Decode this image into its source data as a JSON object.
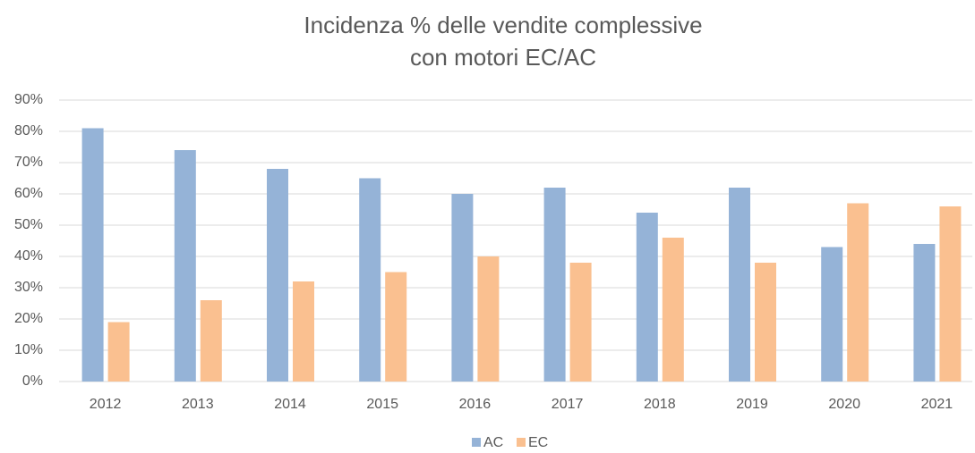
{
  "chart_data": {
    "type": "bar",
    "title": [
      "Incidenza % delle vendite complessive",
      "con motori EC/AC"
    ],
    "categories": [
      "2012",
      "2013",
      "2014",
      "2015",
      "2016",
      "2017",
      "2018",
      "2019",
      "2020",
      "2021"
    ],
    "series": [
      {
        "name": "AC",
        "color": "#95b3d7",
        "values": [
          81,
          74,
          68,
          65,
          60,
          62,
          54,
          62,
          43,
          44
        ]
      },
      {
        "name": "EC",
        "color": "#fac090",
        "values": [
          19,
          26,
          32,
          35,
          40,
          38,
          46,
          38,
          57,
          56
        ]
      }
    ],
    "ylim": [
      0,
      90
    ],
    "yticks": [
      {
        "value": 0,
        "label": "0%"
      },
      {
        "value": 10,
        "label": "10%"
      },
      {
        "value": 20,
        "label": "20%"
      },
      {
        "value": 30,
        "label": "30%"
      },
      {
        "value": 40,
        "label": "40%"
      },
      {
        "value": 50,
        "label": "50%"
      },
      {
        "value": 60,
        "label": "60%"
      },
      {
        "value": 70,
        "label": "70%"
      },
      {
        "value": 80,
        "label": "80%"
      },
      {
        "value": 90,
        "label": "90%"
      }
    ],
    "grid": true,
    "legend": "bottom"
  }
}
